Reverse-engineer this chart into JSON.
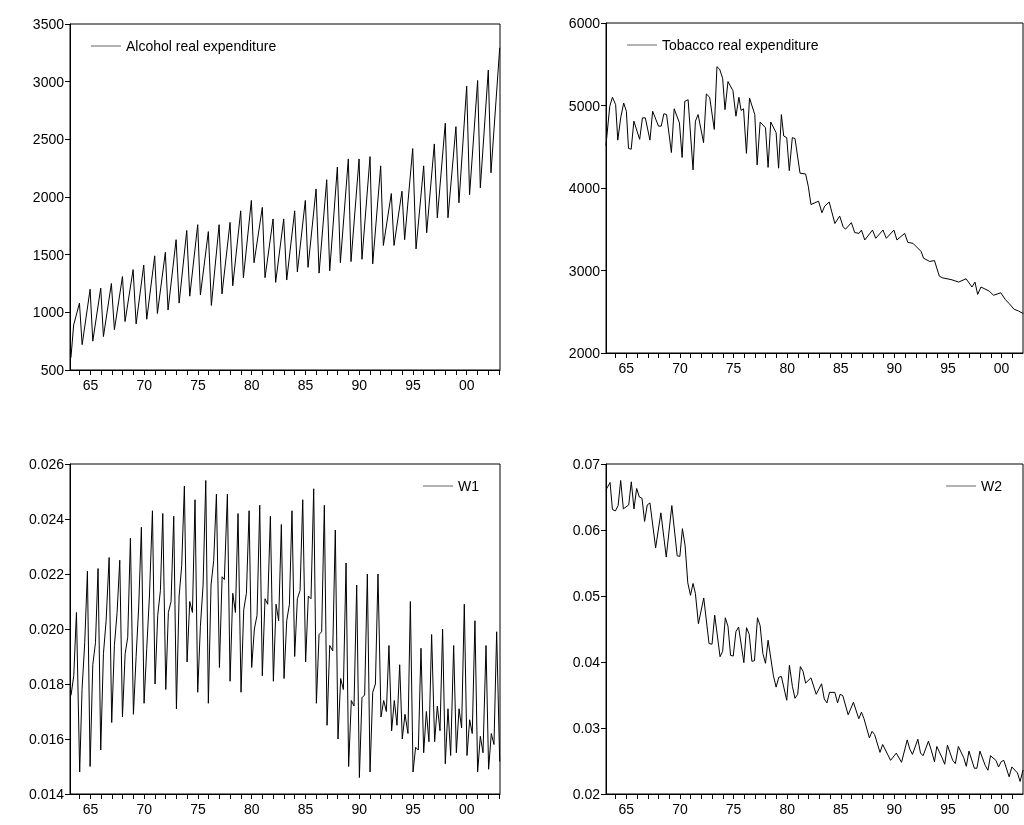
{
  "chart_data": [
    {
      "type": "line",
      "legend": "top left",
      "grid": false,
      "marker": "none",
      "line_style": "solid",
      "xlim": [
        1963.1,
        2003.1
      ],
      "xticks": [
        {
          "value": 1964,
          "label": null
        },
        {
          "value": 1965,
          "label": "65"
        },
        {
          "value": 1966,
          "label": null
        },
        {
          "value": 1967,
          "label": null
        },
        {
          "value": 1968,
          "label": null
        },
        {
          "value": 1969,
          "label": null
        },
        {
          "value": 1970,
          "label": "70"
        },
        {
          "value": 1971,
          "label": null
        },
        {
          "value": 1972,
          "label": null
        },
        {
          "value": 1973,
          "label": null
        },
        {
          "value": 1974,
          "label": null
        },
        {
          "value": 1975,
          "label": "75"
        },
        {
          "value": 1976,
          "label": null
        },
        {
          "value": 1977,
          "label": null
        },
        {
          "value": 1978,
          "label": null
        },
        {
          "value": 1979,
          "label": null
        },
        {
          "value": 1980,
          "label": "80"
        },
        {
          "value": 1981,
          "label": null
        },
        {
          "value": 1982,
          "label": null
        },
        {
          "value": 1983,
          "label": null
        },
        {
          "value": 1984,
          "label": null
        },
        {
          "value": 1985,
          "label": "85"
        },
        {
          "value": 1986,
          "label": null
        },
        {
          "value": 1987,
          "label": null
        },
        {
          "value": 1988,
          "label": null
        },
        {
          "value": 1989,
          "label": null
        },
        {
          "value": 1990,
          "label": "90"
        },
        {
          "value": 1991,
          "label": null
        },
        {
          "value": 1992,
          "label": null
        },
        {
          "value": 1993,
          "label": null
        },
        {
          "value": 1994,
          "label": null
        },
        {
          "value": 1995,
          "label": "95"
        },
        {
          "value": 1996,
          "label": null
        },
        {
          "value": 1997,
          "label": null
        },
        {
          "value": 1998,
          "label": null
        },
        {
          "value": 1999,
          "label": null
        },
        {
          "value": 2000,
          "label": "00"
        },
        {
          "value": 2001,
          "label": null
        },
        {
          "value": 2002,
          "label": null
        },
        {
          "value": 2003,
          "label": null
        }
      ],
      "ylim": [
        500,
        3500
      ],
      "yticks": [
        500,
        1000,
        1500,
        2000,
        2500,
        3000,
        3500
      ],
      "series": [
        {
          "name": "Alcohol real expenditure",
          "color": "#000000",
          "x": [
            1963.19,
            1963.44,
            1963.98,
            1964.23,
            1964.97,
            1965.22,
            1965.96,
            1966.21,
            1966.95,
            1967.23,
            1967.98,
            1968.22,
            1968.97,
            1969.25,
            1969.96,
            1970.24,
            1970.98,
            1971.23,
            1971.97,
            1972.22,
            1972.97,
            1973.25,
            1973.96,
            1974.24,
            1974.98,
            1975.23,
            1975.97,
            1976.25,
            1976.97,
            1977.24,
            1977.99,
            1978.24,
            1978.98,
            1979.23,
            1979.97,
            1980.22,
            1980.99,
            1981.24,
            1981.99,
            1982.23,
            1982.98,
            1983.26,
            1984.0,
            1984.25,
            1984.99,
            1985.24,
            1985.99,
            1986.27,
            1986.98,
            1987.26,
            1987.97,
            1988.25,
            1988.99,
            1989.24,
            1989.99,
            1990.26,
            1991.01,
            1991.26,
            1992.0,
            1992.25,
            1992.99,
            1993.24,
            1993.98,
            1994.23,
            1994.98,
            1995.29,
            1996.0,
            1996.28,
            1996.99,
            1997.27,
            1998.01,
            1998.26,
            1999.0,
            1999.28,
            2000.0,
            2000.27,
            2001.02,
            2001.27,
            2002.01,
            2002.26,
            2003.07
          ],
          "values": [
            610,
            890,
            1080,
            720,
            1200,
            750,
            1210,
            790,
            1250,
            850,
            1310,
            920,
            1370,
            900,
            1410,
            940,
            1490,
            990,
            1520,
            1020,
            1630,
            1080,
            1710,
            1140,
            1760,
            1150,
            1700,
            1060,
            1760,
            1160,
            1780,
            1230,
            1880,
            1300,
            1970,
            1430,
            1910,
            1300,
            1810,
            1260,
            1810,
            1280,
            1880,
            1350,
            1970,
            1390,
            2070,
            1340,
            2150,
            1360,
            2260,
            1430,
            2330,
            1440,
            2330,
            1460,
            2350,
            1420,
            2270,
            1580,
            2030,
            1580,
            2050,
            1630,
            2420,
            1550,
            2270,
            1690,
            2460,
            1820,
            2640,
            1820,
            2610,
            1950,
            2960,
            2020,
            3010,
            2080,
            3100,
            2210,
            3290
          ]
        }
      ]
    },
    {
      "type": "line",
      "legend": "top left",
      "grid": false,
      "marker": "none",
      "line_style": "solid",
      "xlim": [
        1963.1,
        2002.0
      ],
      "xticks": [
        {
          "value": 1964,
          "label": null
        },
        {
          "value": 1965,
          "label": "65"
        },
        {
          "value": 1966,
          "label": null
        },
        {
          "value": 1967,
          "label": null
        },
        {
          "value": 1968,
          "label": null
        },
        {
          "value": 1969,
          "label": null
        },
        {
          "value": 1970,
          "label": "70"
        },
        {
          "value": 1971,
          "label": null
        },
        {
          "value": 1972,
          "label": null
        },
        {
          "value": 1973,
          "label": null
        },
        {
          "value": 1974,
          "label": null
        },
        {
          "value": 1975,
          "label": "75"
        },
        {
          "value": 1976,
          "label": null
        },
        {
          "value": 1977,
          "label": null
        },
        {
          "value": 1978,
          "label": null
        },
        {
          "value": 1979,
          "label": null
        },
        {
          "value": 1980,
          "label": "80"
        },
        {
          "value": 1981,
          "label": null
        },
        {
          "value": 1982,
          "label": null
        },
        {
          "value": 1983,
          "label": null
        },
        {
          "value": 1984,
          "label": null
        },
        {
          "value": 1985,
          "label": "85"
        },
        {
          "value": 1986,
          "label": null
        },
        {
          "value": 1987,
          "label": null
        },
        {
          "value": 1988,
          "label": null
        },
        {
          "value": 1989,
          "label": null
        },
        {
          "value": 1990,
          "label": "90"
        },
        {
          "value": 1991,
          "label": null
        },
        {
          "value": 1992,
          "label": null
        },
        {
          "value": 1993,
          "label": null
        },
        {
          "value": 1994,
          "label": null
        },
        {
          "value": 1995,
          "label": "95"
        },
        {
          "value": 1996,
          "label": null
        },
        {
          "value": 1997,
          "label": null
        },
        {
          "value": 1998,
          "label": null
        },
        {
          "value": 1999,
          "label": null
        },
        {
          "value": 2000,
          "label": "00"
        },
        {
          "value": 2001,
          "label": null
        }
      ],
      "ylim": [
        2000,
        6000
      ],
      "yticks": [
        2000,
        3000,
        4000,
        5000,
        6000
      ],
      "series": [
        {
          "name": "Tobacco real expenditure",
          "color": "#000000",
          "x": [
            1963.1,
            1963.45,
            1963.7,
            1964.0,
            1964.2,
            1964.47,
            1964.75,
            1965.0,
            1965.2,
            1965.45,
            1965.7,
            1966.24,
            1966.5,
            1966.77,
            1967.2,
            1967.45,
            1968.0,
            1968.25,
            1968.5,
            1968.75,
            1969.2,
            1969.46,
            1969.95,
            1970.2,
            1970.45,
            1970.76,
            1971.22,
            1971.44,
            1971.69,
            1972.2,
            1972.46,
            1972.77,
            1973.2,
            1973.45,
            1973.7,
            1973.98,
            1974.2,
            1974.48,
            1974.94,
            1975.22,
            1975.5,
            1975.7,
            1975.93,
            1976.2,
            1976.49,
            1976.98,
            1977.2,
            1977.48,
            1977.98,
            1978.22,
            1978.47,
            1978.97,
            1979.2,
            1979.46,
            1979.68,
            1979.96,
            1980.2,
            1980.48,
            1980.73,
            1981.2,
            1981.72,
            1981.97,
            1982.22,
            1982.93,
            1983.24,
            1983.5,
            1983.92,
            1984.45,
            1984.9,
            1985.22,
            1985.44,
            1985.99,
            1986.3,
            1986.7,
            1986.93,
            1987.24,
            1987.96,
            1988.26,
            1988.94,
            1989.25,
            1989.96,
            1990.24,
            1990.96,
            1991.26,
            1991.73,
            1992.5,
            1992.72,
            1993.28,
            1993.74,
            1994.2,
            1994.52,
            1995.29,
            1996.0,
            1996.69,
            1997.24,
            1997.52,
            1997.77,
            1998.08,
            1998.85,
            1999.25,
            1999.93,
            2000.34,
            2000.7,
            2001.17,
            2001.57,
            2002.0
          ],
          "values": [
            4520,
            4990,
            5100,
            5010,
            4580,
            4850,
            5030,
            4930,
            4480,
            4470,
            4810,
            4590,
            4850,
            4850,
            4580,
            4930,
            4750,
            4750,
            4900,
            4890,
            4430,
            4960,
            4790,
            4370,
            5050,
            5070,
            4220,
            4810,
            4890,
            4550,
            5140,
            5100,
            4710,
            5470,
            5440,
            5330,
            4950,
            5290,
            5180,
            4870,
            5100,
            4940,
            4960,
            4420,
            5090,
            4890,
            4280,
            4800,
            4730,
            4250,
            4800,
            4670,
            4240,
            4890,
            4630,
            4610,
            4210,
            4610,
            4600,
            4180,
            4170,
            4020,
            3800,
            3840,
            3700,
            3780,
            3830,
            3570,
            3660,
            3530,
            3500,
            3580,
            3460,
            3450,
            3490,
            3370,
            3490,
            3390,
            3490,
            3390,
            3490,
            3370,
            3450,
            3340,
            3330,
            3230,
            3150,
            3110,
            3120,
            2930,
            2910,
            2890,
            2860,
            2900,
            2800,
            2860,
            2710,
            2800,
            2750,
            2700,
            2730,
            2650,
            2600,
            2530,
            2510,
            2480
          ]
        }
      ]
    },
    {
      "type": "line",
      "legend": "top right",
      "grid": false,
      "marker": "none",
      "line_style": "solid",
      "xlim": [
        1963.1,
        2003.1
      ],
      "xticks": [
        {
          "value": 1964,
          "label": null
        },
        {
          "value": 1965,
          "label": "65"
        },
        {
          "value": 1966,
          "label": null
        },
        {
          "value": 1967,
          "label": null
        },
        {
          "value": 1968,
          "label": null
        },
        {
          "value": 1969,
          "label": null
        },
        {
          "value": 1970,
          "label": "70"
        },
        {
          "value": 1971,
          "label": null
        },
        {
          "value": 1972,
          "label": null
        },
        {
          "value": 1973,
          "label": null
        },
        {
          "value": 1974,
          "label": null
        },
        {
          "value": 1975,
          "label": "75"
        },
        {
          "value": 1976,
          "label": null
        },
        {
          "value": 1977,
          "label": null
        },
        {
          "value": 1978,
          "label": null
        },
        {
          "value": 1979,
          "label": null
        },
        {
          "value": 1980,
          "label": "80"
        },
        {
          "value": 1981,
          "label": null
        },
        {
          "value": 1982,
          "label": null
        },
        {
          "value": 1983,
          "label": null
        },
        {
          "value": 1984,
          "label": null
        },
        {
          "value": 1985,
          "label": "85"
        },
        {
          "value": 1986,
          "label": null
        },
        {
          "value": 1987,
          "label": null
        },
        {
          "value": 1988,
          "label": null
        },
        {
          "value": 1989,
          "label": null
        },
        {
          "value": 1990,
          "label": "90"
        },
        {
          "value": 1991,
          "label": null
        },
        {
          "value": 1992,
          "label": null
        },
        {
          "value": 1993,
          "label": null
        },
        {
          "value": 1994,
          "label": null
        },
        {
          "value": 1995,
          "label": "95"
        },
        {
          "value": 1996,
          "label": null
        },
        {
          "value": 1997,
          "label": null
        },
        {
          "value": 1998,
          "label": null
        },
        {
          "value": 1999,
          "label": null
        },
        {
          "value": 2000,
          "label": "00"
        },
        {
          "value": 2001,
          "label": null
        },
        {
          "value": 2002,
          "label": null
        },
        {
          "value": 2003,
          "label": null
        }
      ],
      "ylim": [
        0.014,
        0.026
      ],
      "yticks": [
        0.014,
        0.016,
        0.018,
        {
          "value": 0.02,
          "label": "0.020"
        },
        0.022,
        0.024,
        0.026
      ],
      "series": [
        {
          "name": "W1",
          "color": "#000000",
          "x": [
            1963.2,
            1963.45,
            1963.7,
            1964.0,
            1964.22,
            1964.47,
            1964.72,
            1964.97,
            1965.22,
            1965.47,
            1965.71,
            1965.96,
            1966.21,
            1966.46,
            1966.74,
            1966.98,
            1967.23,
            1967.48,
            1967.73,
            1967.98,
            1968.23,
            1968.47,
            1968.72,
            1969.0,
            1969.25,
            1969.49,
            1969.74,
            1969.99,
            1970.24,
            1970.49,
            1970.77,
            1971.01,
            1971.26,
            1971.51,
            1971.73,
            1972.01,
            1972.25,
            1972.5,
            1972.75,
            1973.0,
            1973.25,
            1973.49,
            1973.74,
            1973.99,
            1974.24,
            1974.49,
            1974.73,
            1974.98,
            1975.23,
            1975.48,
            1975.73,
            1975.97,
            1976.22,
            1976.47,
            1976.72,
            1977.0,
            1977.25,
            1977.46,
            1977.74,
            1977.99,
            1978.24,
            1978.49,
            1978.73,
            1979.01,
            1979.26,
            1979.51,
            1979.76,
            1980.0,
            1980.25,
            1980.5,
            1980.75,
            1980.99,
            1981.24,
            1981.49,
            1981.74,
            1982.02,
            1982.27,
            1982.51,
            1982.76,
            1983.01,
            1983.26,
            1983.51,
            1983.75,
            1984.0,
            1984.25,
            1984.5,
            1984.75,
            1985.02,
            1985.27,
            1985.52,
            1985.77,
            1986.02,
            1986.27,
            1986.51,
            1986.76,
            1987.01,
            1987.26,
            1987.54,
            1987.78,
            1988.03,
            1988.28,
            1988.53,
            1988.78,
            1989.02,
            1989.27,
            1989.52,
            1989.77,
            1990.02,
            1990.26,
            1990.51,
            1990.76,
            1991.01,
            1991.26,
            1991.51,
            1991.75,
            1992.03,
            1992.28,
            1992.53,
            1992.77,
            1993.02,
            1993.27,
            1993.52,
            1993.77,
            1994.01,
            1994.26,
            1994.54,
            1994.76,
            1995.01,
            1995.25,
            1995.5,
            1995.75,
            1996.0,
            1996.25,
            1996.49,
            1996.74,
            1997.02,
            1997.27,
            1997.52,
            1997.76,
            1998.01,
            1998.26,
            1998.51,
            1998.79,
            1999.04,
            1999.29,
            1999.53,
            1999.78,
            2000.03,
            2000.28,
            2000.52,
            2000.77,
            2001.02,
            2001.27,
            2001.52,
            2001.8,
            2002.04,
            2002.29,
            2002.54,
            2002.79,
            2003.07
          ],
          "values": [
            0.0176,
            0.0183,
            0.0206,
            0.0148,
            0.0178,
            0.0195,
            0.0221,
            0.015,
            0.0187,
            0.0195,
            0.0222,
            0.0156,
            0.0191,
            0.0203,
            0.0226,
            0.0166,
            0.0194,
            0.0206,
            0.0225,
            0.0168,
            0.0191,
            0.0197,
            0.0233,
            0.0169,
            0.019,
            0.0208,
            0.0237,
            0.0173,
            0.0193,
            0.0212,
            0.0243,
            0.018,
            0.0205,
            0.0214,
            0.0242,
            0.0178,
            0.0206,
            0.021,
            0.0241,
            0.0171,
            0.0212,
            0.0223,
            0.0252,
            0.0188,
            0.021,
            0.0206,
            0.0247,
            0.0177,
            0.0201,
            0.0216,
            0.0254,
            0.0173,
            0.0216,
            0.0225,
            0.0249,
            0.0186,
            0.0219,
            0.0218,
            0.0249,
            0.0181,
            0.0213,
            0.0206,
            0.0242,
            0.0177,
            0.0207,
            0.0213,
            0.0243,
            0.0186,
            0.02,
            0.0205,
            0.0245,
            0.0183,
            0.0211,
            0.0209,
            0.0241,
            0.0181,
            0.0209,
            0.0203,
            0.0238,
            0.0182,
            0.0203,
            0.0209,
            0.0243,
            0.019,
            0.0211,
            0.0214,
            0.0247,
            0.0188,
            0.0212,
            0.0211,
            0.0251,
            0.0173,
            0.0198,
            0.0199,
            0.0245,
            0.0165,
            0.0194,
            0.0192,
            0.0236,
            0.016,
            0.0182,
            0.0178,
            0.0224,
            0.015,
            0.0174,
            0.0172,
            0.0216,
            0.0146,
            0.0175,
            0.0176,
            0.022,
            0.0148,
            0.0177,
            0.018,
            0.022,
            0.0168,
            0.0174,
            0.017,
            0.0194,
            0.0163,
            0.0174,
            0.0165,
            0.0187,
            0.016,
            0.0169,
            0.0162,
            0.021,
            0.0148,
            0.0157,
            0.0156,
            0.0193,
            0.0155,
            0.017,
            0.0159,
            0.0198,
            0.0159,
            0.0172,
            0.0163,
            0.02,
            0.0151,
            0.0171,
            0.0154,
            0.0194,
            0.0155,
            0.0171,
            0.0164,
            0.0209,
            0.0154,
            0.0167,
            0.0162,
            0.0203,
            0.0148,
            0.0161,
            0.0155,
            0.0194,
            0.0149,
            0.0162,
            0.0158,
            0.0199,
            0.0152
          ]
        }
      ]
    },
    {
      "type": "line",
      "legend": "top right",
      "grid": false,
      "marker": "none",
      "line_style": "solid",
      "xlim": [
        1963.1,
        2002.0
      ],
      "xticks": [
        {
          "value": 1964,
          "label": null
        },
        {
          "value": 1965,
          "label": "65"
        },
        {
          "value": 1966,
          "label": null
        },
        {
          "value": 1967,
          "label": null
        },
        {
          "value": 1968,
          "label": null
        },
        {
          "value": 1969,
          "label": null
        },
        {
          "value": 1970,
          "label": "70"
        },
        {
          "value": 1971,
          "label": null
        },
        {
          "value": 1972,
          "label": null
        },
        {
          "value": 1973,
          "label": null
        },
        {
          "value": 1974,
          "label": null
        },
        {
          "value": 1975,
          "label": "75"
        },
        {
          "value": 1976,
          "label": null
        },
        {
          "value": 1977,
          "label": null
        },
        {
          "value": 1978,
          "label": null
        },
        {
          "value": 1979,
          "label": null
        },
        {
          "value": 1980,
          "label": "80"
        },
        {
          "value": 1981,
          "label": null
        },
        {
          "value": 1982,
          "label": null
        },
        {
          "value": 1983,
          "label": null
        },
        {
          "value": 1984,
          "label": null
        },
        {
          "value": 1985,
          "label": "85"
        },
        {
          "value": 1986,
          "label": null
        },
        {
          "value": 1987,
          "label": null
        },
        {
          "value": 1988,
          "label": null
        },
        {
          "value": 1989,
          "label": null
        },
        {
          "value": 1990,
          "label": "90"
        },
        {
          "value": 1991,
          "label": null
        },
        {
          "value": 1992,
          "label": null
        },
        {
          "value": 1993,
          "label": null
        },
        {
          "value": 1994,
          "label": null
        },
        {
          "value": 1995,
          "label": "95"
        },
        {
          "value": 1996,
          "label": null
        },
        {
          "value": 1997,
          "label": null
        },
        {
          "value": 1998,
          "label": null
        },
        {
          "value": 1999,
          "label": null
        },
        {
          "value": 2000,
          "label": "00"
        },
        {
          "value": 2001,
          "label": null
        }
      ],
      "ylim": [
        0.02,
        0.07
      ],
      "yticks": [
        0.02,
        0.03,
        0.04,
        0.05,
        0.06,
        0.07
      ],
      "series": [
        {
          "name": "W2",
          "color": "#000000",
          "x": [
            1963.14,
            1963.48,
            1963.7,
            1963.98,
            1964.23,
            1964.47,
            1964.72,
            1965.22,
            1965.46,
            1965.71,
            1965.96,
            1966.21,
            1966.46,
            1966.7,
            1966.95,
            1967.2,
            1967.73,
            1968.22,
            1968.72,
            1969.24,
            1969.74,
            1969.99,
            1970.23,
            1970.48,
            1970.73,
            1970.98,
            1971.22,
            1971.44,
            1971.72,
            1972.22,
            1972.71,
            1972.99,
            1973.24,
            1973.74,
            1973.98,
            1974.23,
            1974.48,
            1974.72,
            1974.97,
            1975.22,
            1975.47,
            1975.96,
            1976.21,
            1976.46,
            1976.71,
            1976.95,
            1977.23,
            1977.48,
            1977.73,
            1977.98,
            1978.22,
            1978.72,
            1978.97,
            1979.22,
            1979.46,
            1979.96,
            1980.21,
            1980.49,
            1980.73,
            1980.98,
            1981.23,
            1981.48,
            1981.72,
            1982.22,
            1982.71,
            1983.21,
            1983.46,
            1983.71,
            1983.95,
            1984.45,
            1984.7,
            1984.94,
            1985.19,
            1985.69,
            1986.18,
            1986.68,
            1986.93,
            1987.17,
            1987.67,
            1987.92,
            1988.16,
            1988.66,
            1988.91,
            1989.65,
            1990.18,
            1990.67,
            1991.2,
            1991.44,
            1991.69,
            1992.19,
            1992.44,
            1992.68,
            1993.18,
            1993.43,
            1993.74,
            1993.96,
            1994.45,
            1994.7,
            1994.95,
            1995.44,
            1995.69,
            1995.97,
            1996.47,
            1996.71,
            1996.96,
            1997.46,
            1997.7,
            1997.98,
            1998.48,
            1998.73,
            1998.97,
            1999.47,
            1999.72,
            1999.97,
            2000.21,
            2000.71,
            2000.96,
            2001.48,
            2001.73,
            2002.0
          ],
          "values": [
            0.0662,
            0.0672,
            0.0631,
            0.0629,
            0.0637,
            0.0675,
            0.0632,
            0.0638,
            0.0673,
            0.0632,
            0.0663,
            0.065,
            0.0648,
            0.0613,
            0.0638,
            0.0641,
            0.0573,
            0.0626,
            0.0559,
            0.0637,
            0.0561,
            0.056,
            0.0602,
            0.0576,
            0.052,
            0.0501,
            0.0519,
            0.0504,
            0.0458,
            0.0497,
            0.0428,
            0.0427,
            0.0471,
            0.0408,
            0.0416,
            0.0467,
            0.0454,
            0.041,
            0.0409,
            0.0446,
            0.0453,
            0.0399,
            0.0452,
            0.0442,
            0.0401,
            0.0402,
            0.0467,
            0.0455,
            0.0413,
            0.0398,
            0.0433,
            0.0379,
            0.0362,
            0.0377,
            0.0378,
            0.0342,
            0.0395,
            0.0363,
            0.0345,
            0.0351,
            0.0393,
            0.0386,
            0.0368,
            0.0376,
            0.0351,
            0.0367,
            0.0344,
            0.0338,
            0.0354,
            0.0354,
            0.0338,
            0.0351,
            0.0349,
            0.032,
            0.0339,
            0.0314,
            0.0324,
            0.0314,
            0.0285,
            0.0295,
            0.029,
            0.0263,
            0.0275,
            0.0251,
            0.0262,
            0.0248,
            0.0282,
            0.0268,
            0.026,
            0.0283,
            0.0262,
            0.0258,
            0.028,
            0.0267,
            0.0249,
            0.0272,
            0.0255,
            0.0245,
            0.0274,
            0.0251,
            0.0246,
            0.0272,
            0.0255,
            0.0242,
            0.0265,
            0.0239,
            0.0239,
            0.0265,
            0.0243,
            0.0236,
            0.0258,
            0.0251,
            0.0241,
            0.0249,
            0.0251,
            0.0226,
            0.0241,
            0.0232,
            0.0219,
            0.0236
          ]
        }
      ]
    }
  ]
}
